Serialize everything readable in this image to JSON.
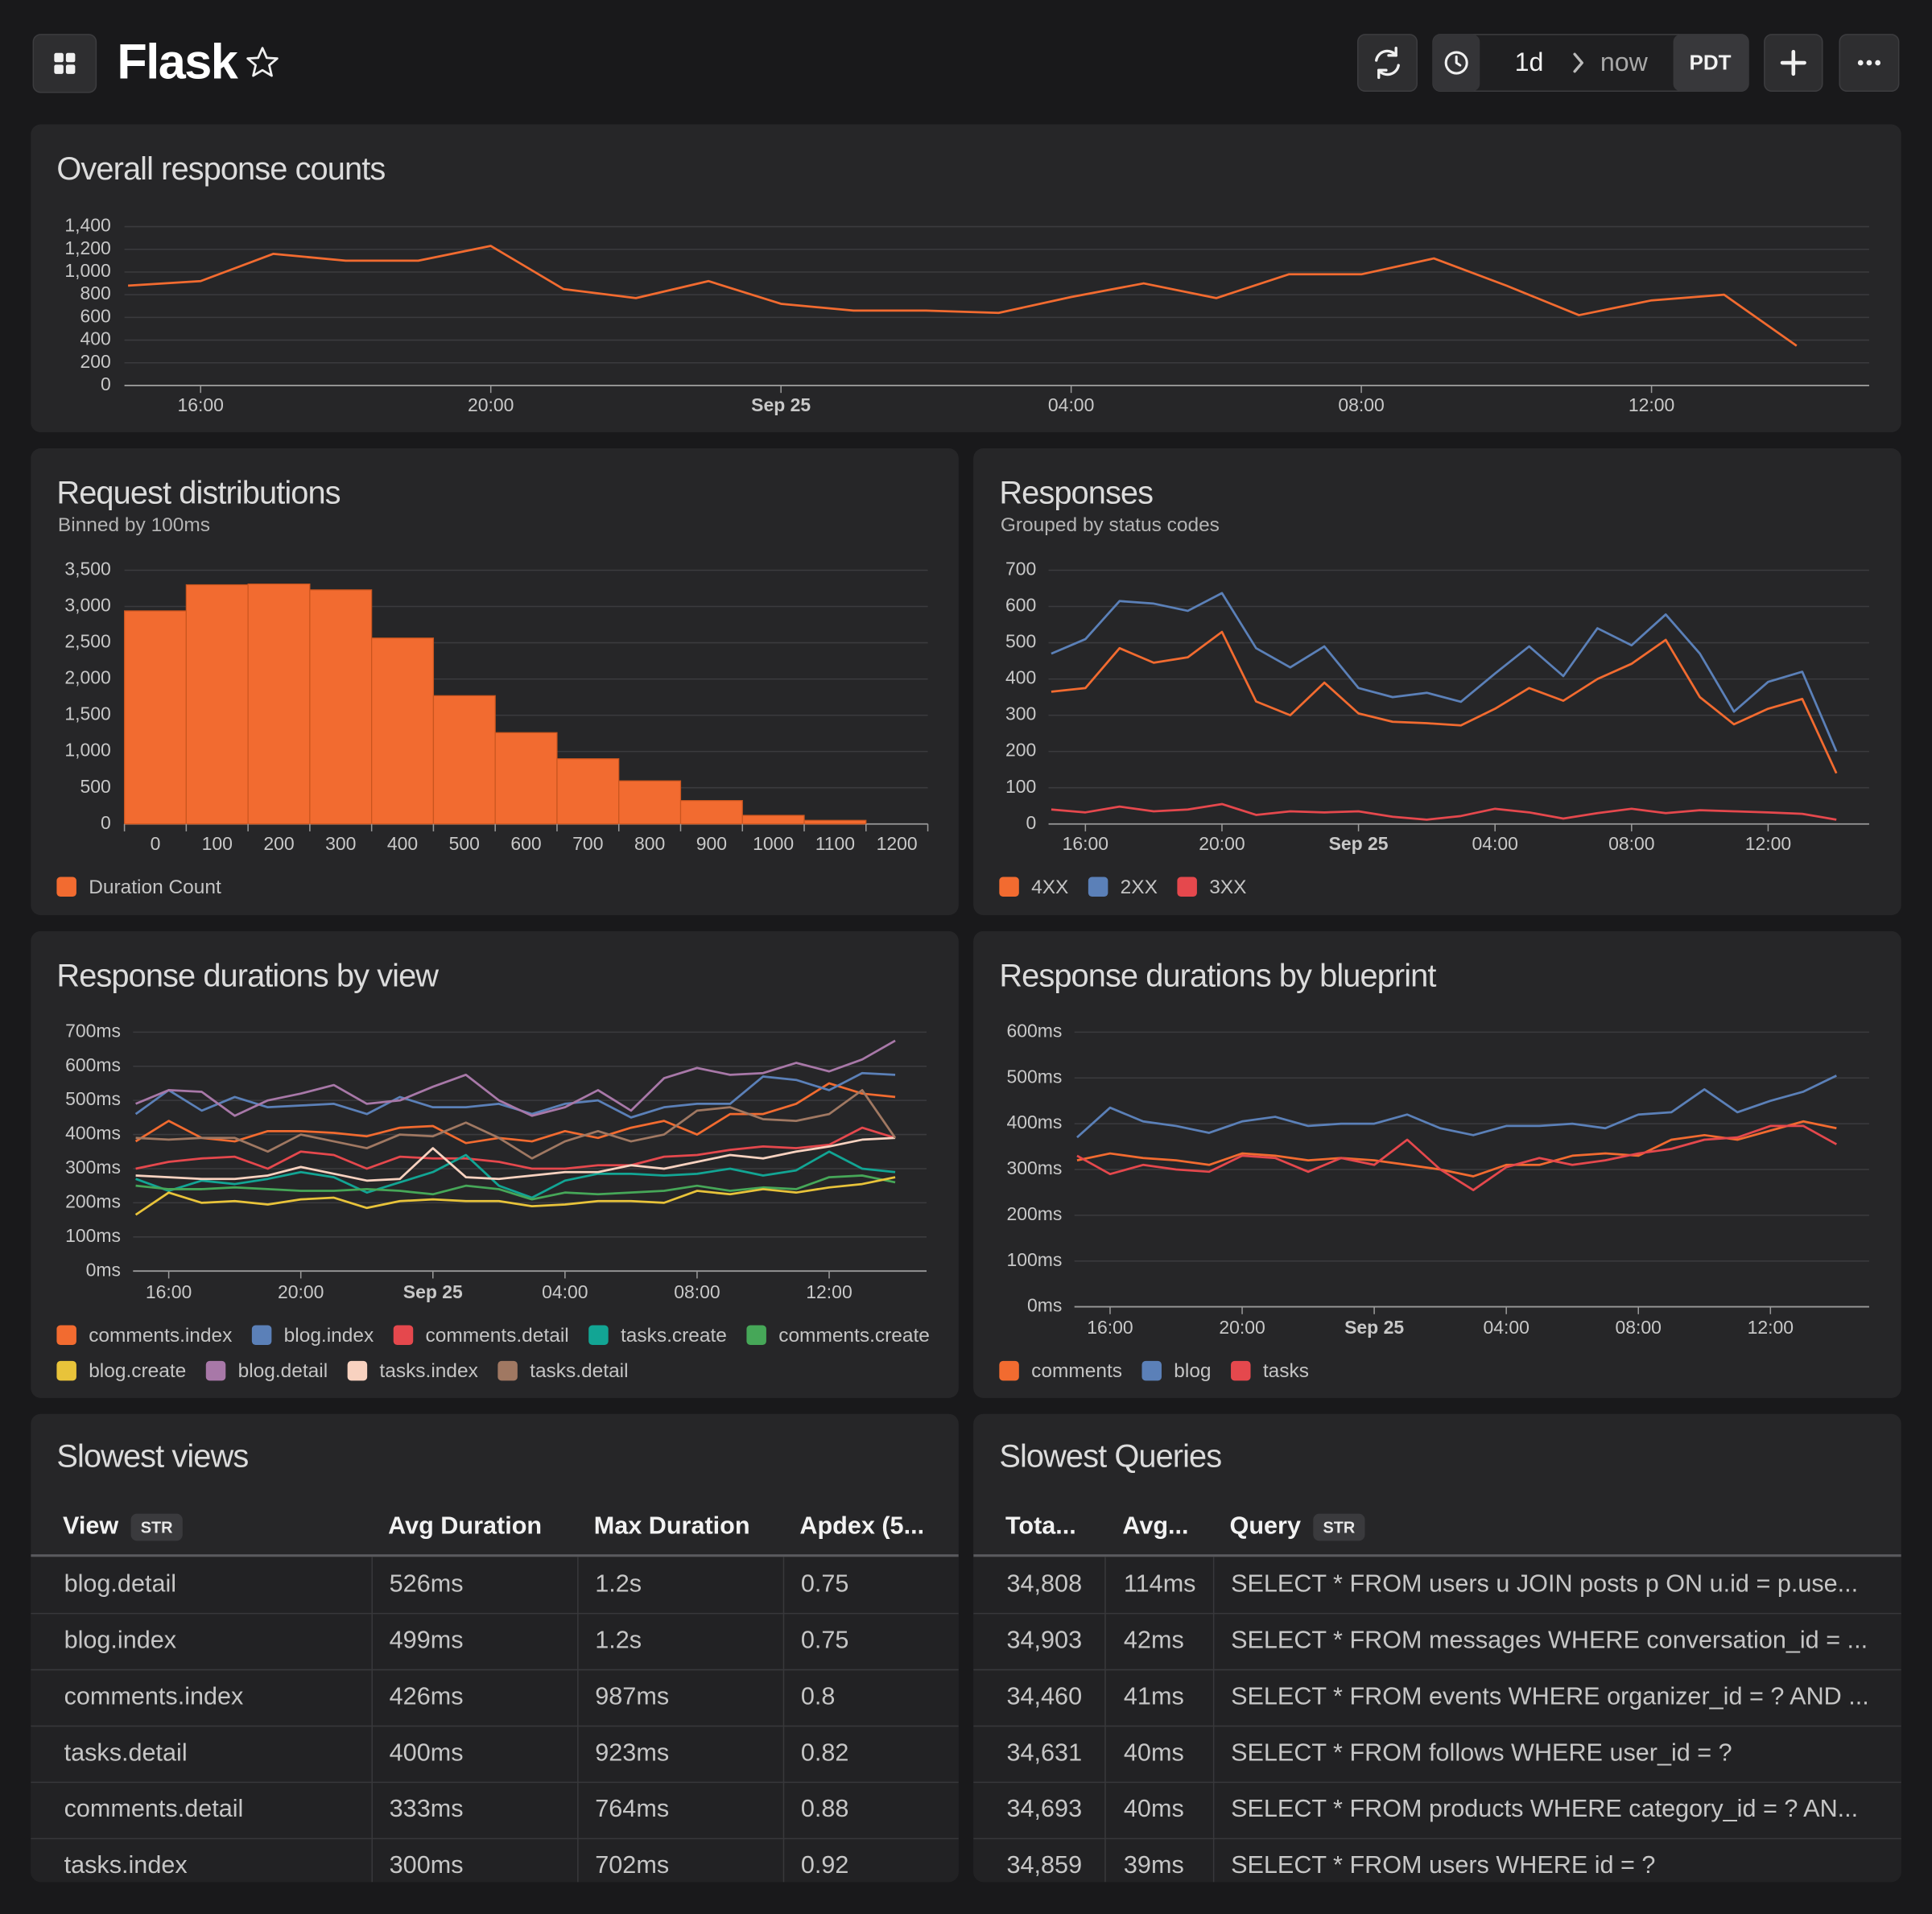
{
  "header": {
    "title": "Flask",
    "range": "1d",
    "end": "now",
    "timezone": "PDT"
  },
  "chart_data": [
    {
      "type": "line",
      "title": "Overall response counts",
      "x": [
        15,
        16,
        17,
        18,
        19,
        20,
        21,
        22,
        23,
        24,
        25,
        26,
        27,
        28,
        29,
        30,
        31,
        32,
        33,
        34,
        35,
        36,
        37,
        38
      ],
      "values": [
        880,
        920,
        1160,
        1100,
        1100,
        1230,
        850,
        770,
        920,
        720,
        660,
        660,
        640,
        780,
        900,
        770,
        980,
        980,
        1120,
        880,
        620,
        750,
        800,
        350
      ],
      "color": "#f26b30",
      "xlim": [
        14.95,
        39
      ],
      "xticks": [
        {
          "value": 16,
          "label": "16:00"
        },
        {
          "value": 20,
          "label": "20:00"
        },
        {
          "value": 24,
          "label": "Sep 25"
        },
        {
          "value": 28,
          "label": "04:00"
        },
        {
          "value": 32,
          "label": "08:00"
        },
        {
          "value": 36,
          "label": "12:00"
        }
      ],
      "ylim": [
        0,
        1400
      ],
      "yticks": [
        0,
        200,
        400,
        600,
        800,
        {
          "value": 1000,
          "label": "1,000"
        },
        {
          "value": 1200,
          "label": "1,200"
        },
        {
          "value": 1400,
          "label": "1,400"
        }
      ],
      "grid": true
    },
    {
      "type": "bar",
      "title": "Request distributions",
      "subtitle": "Binned by 100ms",
      "categories": [
        "0",
        "100",
        "200",
        "300",
        "400",
        "500",
        "600",
        "700",
        "800",
        "900",
        "1000",
        "1100",
        "1200"
      ],
      "series": [
        {
          "name": "Duration Count",
          "color": "#f26b30",
          "values": [
            2940,
            3300,
            3310,
            3230,
            2565,
            1770,
            1260,
            900,
            595,
            323,
            119,
            50,
            0
          ]
        }
      ],
      "ylim": [
        0,
        3500
      ],
      "yticks": [
        0,
        500,
        {
          "value": 1000,
          "label": "1,000"
        },
        {
          "value": 1500,
          "label": "1,500"
        },
        {
          "value": 2000,
          "label": "2,000"
        },
        {
          "value": 2500,
          "label": "2,500"
        },
        {
          "value": 3000,
          "label": "3,000"
        },
        {
          "value": 3500,
          "label": "3,500"
        }
      ],
      "grid": true
    },
    {
      "type": "line",
      "title": "Responses",
      "subtitle": "Grouped by status codes",
      "x": [
        15,
        16,
        17,
        18,
        19,
        20,
        21,
        22,
        23,
        24,
        25,
        26,
        27,
        28,
        29,
        30,
        31,
        32,
        33,
        34,
        35,
        36,
        37,
        38
      ],
      "series": [
        {
          "name": "4XX",
          "color": "#f26b30",
          "values": [
            365,
            375,
            485,
            445,
            460,
            530,
            338,
            300,
            390,
            305,
            282,
            278,
            272,
            318,
            375,
            340,
            400,
            442,
            508,
            350,
            275,
            318,
            345,
            140
          ]
        },
        {
          "name": "2XX",
          "color": "#5b80b8",
          "values": [
            470,
            510,
            615,
            608,
            588,
            637,
            485,
            432,
            490,
            375,
            350,
            362,
            337,
            415,
            490,
            408,
            540,
            493,
            578,
            470,
            310,
            392,
            420,
            200
          ]
        },
        {
          "name": "3XX",
          "color": "#e5484d",
          "values": [
            40,
            32,
            48,
            35,
            40,
            55,
            25,
            35,
            32,
            35,
            20,
            12,
            22,
            42,
            32,
            15,
            30,
            42,
            30,
            38,
            35,
            32,
            28,
            12
          ]
        }
      ],
      "xlim": [
        14.92,
        38.96
      ],
      "xticks": [
        {
          "value": 16,
          "label": "16:00"
        },
        {
          "value": 20,
          "label": "20:00"
        },
        {
          "value": 24,
          "label": "Sep 25"
        },
        {
          "value": 28,
          "label": "04:00"
        },
        {
          "value": 32,
          "label": "08:00"
        },
        {
          "value": 36,
          "label": "12:00"
        }
      ],
      "ylim": [
        0,
        700
      ],
      "yticks": [
        0,
        100,
        200,
        300,
        400,
        500,
        600,
        700
      ],
      "grid": true
    },
    {
      "type": "line",
      "title": "Response durations by view",
      "x": [
        15,
        16,
        17,
        18,
        19,
        20,
        21,
        22,
        23,
        24,
        25,
        26,
        27,
        28,
        29,
        30,
        31,
        32,
        33,
        34,
        35,
        36,
        37,
        38
      ],
      "series": [
        {
          "name": "comments.index",
          "color": "#f26b30",
          "values": [
            380,
            440,
            390,
            380,
            410,
            410,
            405,
            395,
            420,
            425,
            375,
            390,
            380,
            410,
            390,
            420,
            440,
            400,
            460,
            460,
            490,
            550,
            520,
            510
          ]
        },
        {
          "name": "blog.index",
          "color": "#5b80b8",
          "values": [
            460,
            530,
            470,
            510,
            480,
            485,
            490,
            460,
            510,
            480,
            480,
            490,
            460,
            490,
            500,
            450,
            480,
            490,
            490,
            570,
            560,
            530,
            580,
            575
          ]
        },
        {
          "name": "comments.detail",
          "color": "#e5484d",
          "values": [
            300,
            320,
            330,
            335,
            300,
            350,
            340,
            300,
            335,
            330,
            330,
            320,
            300,
            300,
            310,
            310,
            335,
            340,
            355,
            365,
            360,
            370,
            420,
            390
          ]
        },
        {
          "name": "tasks.create",
          "color": "#12a594",
          "values": [
            270,
            235,
            265,
            255,
            270,
            290,
            275,
            230,
            260,
            290,
            340,
            250,
            215,
            265,
            285,
            285,
            280,
            285,
            300,
            280,
            295,
            350,
            300,
            290
          ]
        },
        {
          "name": "comments.create",
          "color": "#46a758",
          "values": [
            250,
            240,
            240,
            245,
            240,
            235,
            235,
            240,
            235,
            225,
            250,
            240,
            210,
            230,
            225,
            230,
            235,
            250,
            235,
            245,
            240,
            275,
            280,
            260
          ]
        },
        {
          "name": "blog.create",
          "color": "#e8c33a",
          "values": [
            165,
            230,
            200,
            205,
            195,
            210,
            215,
            185,
            205,
            210,
            205,
            205,
            190,
            195,
            205,
            205,
            200,
            235,
            225,
            240,
            230,
            245,
            255,
            275
          ]
        },
        {
          "name": "blog.detail",
          "color": "#a878a8",
          "values": [
            490,
            530,
            525,
            455,
            500,
            520,
            545,
            490,
            500,
            540,
            575,
            500,
            455,
            480,
            530,
            470,
            565,
            595,
            575,
            580,
            610,
            585,
            620,
            675
          ]
        },
        {
          "name": "tasks.index",
          "color": "#f8d2c0",
          "values": [
            280,
            275,
            270,
            270,
            280,
            305,
            285,
            265,
            270,
            360,
            275,
            270,
            280,
            290,
            290,
            310,
            300,
            320,
            340,
            330,
            350,
            365,
            385,
            390
          ]
        },
        {
          "name": "tasks.detail",
          "color": "#a07862",
          "values": [
            390,
            385,
            390,
            390,
            350,
            400,
            380,
            360,
            400,
            395,
            435,
            390,
            330,
            380,
            410,
            380,
            400,
            470,
            480,
            445,
            440,
            460,
            530,
            390
          ]
        }
      ],
      "xlim": [
        14.92,
        38.95
      ],
      "xticks": [
        {
          "value": 16,
          "label": "16:00"
        },
        {
          "value": 20,
          "label": "20:00"
        },
        {
          "value": 24,
          "label": "Sep 25"
        },
        {
          "value": 28,
          "label": "04:00"
        },
        {
          "value": 32,
          "label": "08:00"
        },
        {
          "value": 36,
          "label": "12:00"
        }
      ],
      "ylim": [
        0,
        700
      ],
      "yticks": [
        {
          "value": 0,
          "label": "0ms"
        },
        {
          "value": 100,
          "label": "100ms"
        },
        {
          "value": 200,
          "label": "200ms"
        },
        {
          "value": 300,
          "label": "300ms"
        },
        {
          "value": 400,
          "label": "400ms"
        },
        {
          "value": 500,
          "label": "500ms"
        },
        {
          "value": 600,
          "label": "600ms"
        },
        {
          "value": 700,
          "label": "700ms"
        }
      ],
      "grid": true
    },
    {
      "type": "line",
      "title": "Response durations by blueprint",
      "x": [
        15,
        16,
        17,
        18,
        19,
        20,
        21,
        22,
        23,
        24,
        25,
        26,
        27,
        28,
        29,
        30,
        31,
        32,
        33,
        34,
        35,
        36,
        37,
        38
      ],
      "series": [
        {
          "name": "comments",
          "color": "#f26b30",
          "values": [
            320,
            335,
            325,
            320,
            310,
            335,
            330,
            320,
            325,
            320,
            310,
            300,
            285,
            310,
            310,
            330,
            335,
            330,
            365,
            375,
            365,
            385,
            405,
            390
          ]
        },
        {
          "name": "blog",
          "color": "#5b80b8",
          "values": [
            370,
            435,
            405,
            395,
            380,
            405,
            415,
            395,
            400,
            400,
            420,
            390,
            375,
            395,
            395,
            400,
            390,
            420,
            425,
            475,
            425,
            450,
            470,
            505
          ]
        },
        {
          "name": "tasks",
          "color": "#e5484d",
          "values": [
            330,
            290,
            310,
            300,
            295,
            330,
            325,
            295,
            325,
            310,
            365,
            300,
            255,
            305,
            325,
            310,
            320,
            335,
            345,
            365,
            370,
            395,
            395,
            355
          ]
        }
      ],
      "xlim": [
        14.92,
        38.99
      ],
      "xticks": [
        {
          "value": 16,
          "label": "16:00"
        },
        {
          "value": 20,
          "label": "20:00"
        },
        {
          "value": 24,
          "label": "Sep 25"
        },
        {
          "value": 28,
          "label": "04:00"
        },
        {
          "value": 32,
          "label": "08:00"
        },
        {
          "value": 36,
          "label": "12:00"
        }
      ],
      "ylim": [
        0,
        600
      ],
      "yticks": [
        {
          "value": 0,
          "label": "0ms"
        },
        {
          "value": 100,
          "label": "100ms"
        },
        {
          "value": 200,
          "label": "200ms"
        },
        {
          "value": 300,
          "label": "300ms"
        },
        {
          "value": 400,
          "label": "400ms"
        },
        {
          "value": 500,
          "label": "500ms"
        },
        {
          "value": 600,
          "label": "600ms"
        }
      ],
      "grid": true
    }
  ],
  "tables": [
    {
      "title": "Slowest views",
      "columns": [
        {
          "label": "View",
          "type": "STR"
        },
        {
          "label": "Avg Duration"
        },
        {
          "label": "Max Duration"
        },
        {
          "label": "Apdex (5..."
        }
      ],
      "rows": [
        [
          "blog.detail",
          "526ms",
          "1.2s",
          "0.75"
        ],
        [
          "blog.index",
          "499ms",
          "1.2s",
          "0.75"
        ],
        [
          "comments.index",
          "426ms",
          "987ms",
          "0.8"
        ],
        [
          "tasks.detail",
          "400ms",
          "923ms",
          "0.82"
        ],
        [
          "comments.detail",
          "333ms",
          "764ms",
          "0.88"
        ],
        [
          "tasks.index",
          "300ms",
          "702ms",
          "0.92"
        ]
      ]
    },
    {
      "title": "Slowest Queries",
      "columns": [
        {
          "label": "Tota..."
        },
        {
          "label": "Avg..."
        },
        {
          "label": "Query",
          "type": "STR"
        }
      ],
      "rows": [
        [
          "34,808",
          "114ms",
          "SELECT * FROM users u JOIN posts p ON u.id = p.use..."
        ],
        [
          "34,903",
          "42ms",
          "SELECT * FROM messages WHERE conversation_id = ..."
        ],
        [
          "34,460",
          "41ms",
          "SELECT * FROM events WHERE organizer_id = ? AND ..."
        ],
        [
          "34,631",
          "40ms",
          "SELECT * FROM follows WHERE user_id = ?"
        ],
        [
          "34,693",
          "40ms",
          "SELECT * FROM products WHERE category_id = ? AN..."
        ],
        [
          "34,859",
          "39ms",
          "SELECT * FROM users WHERE id = ?"
        ]
      ]
    }
  ]
}
